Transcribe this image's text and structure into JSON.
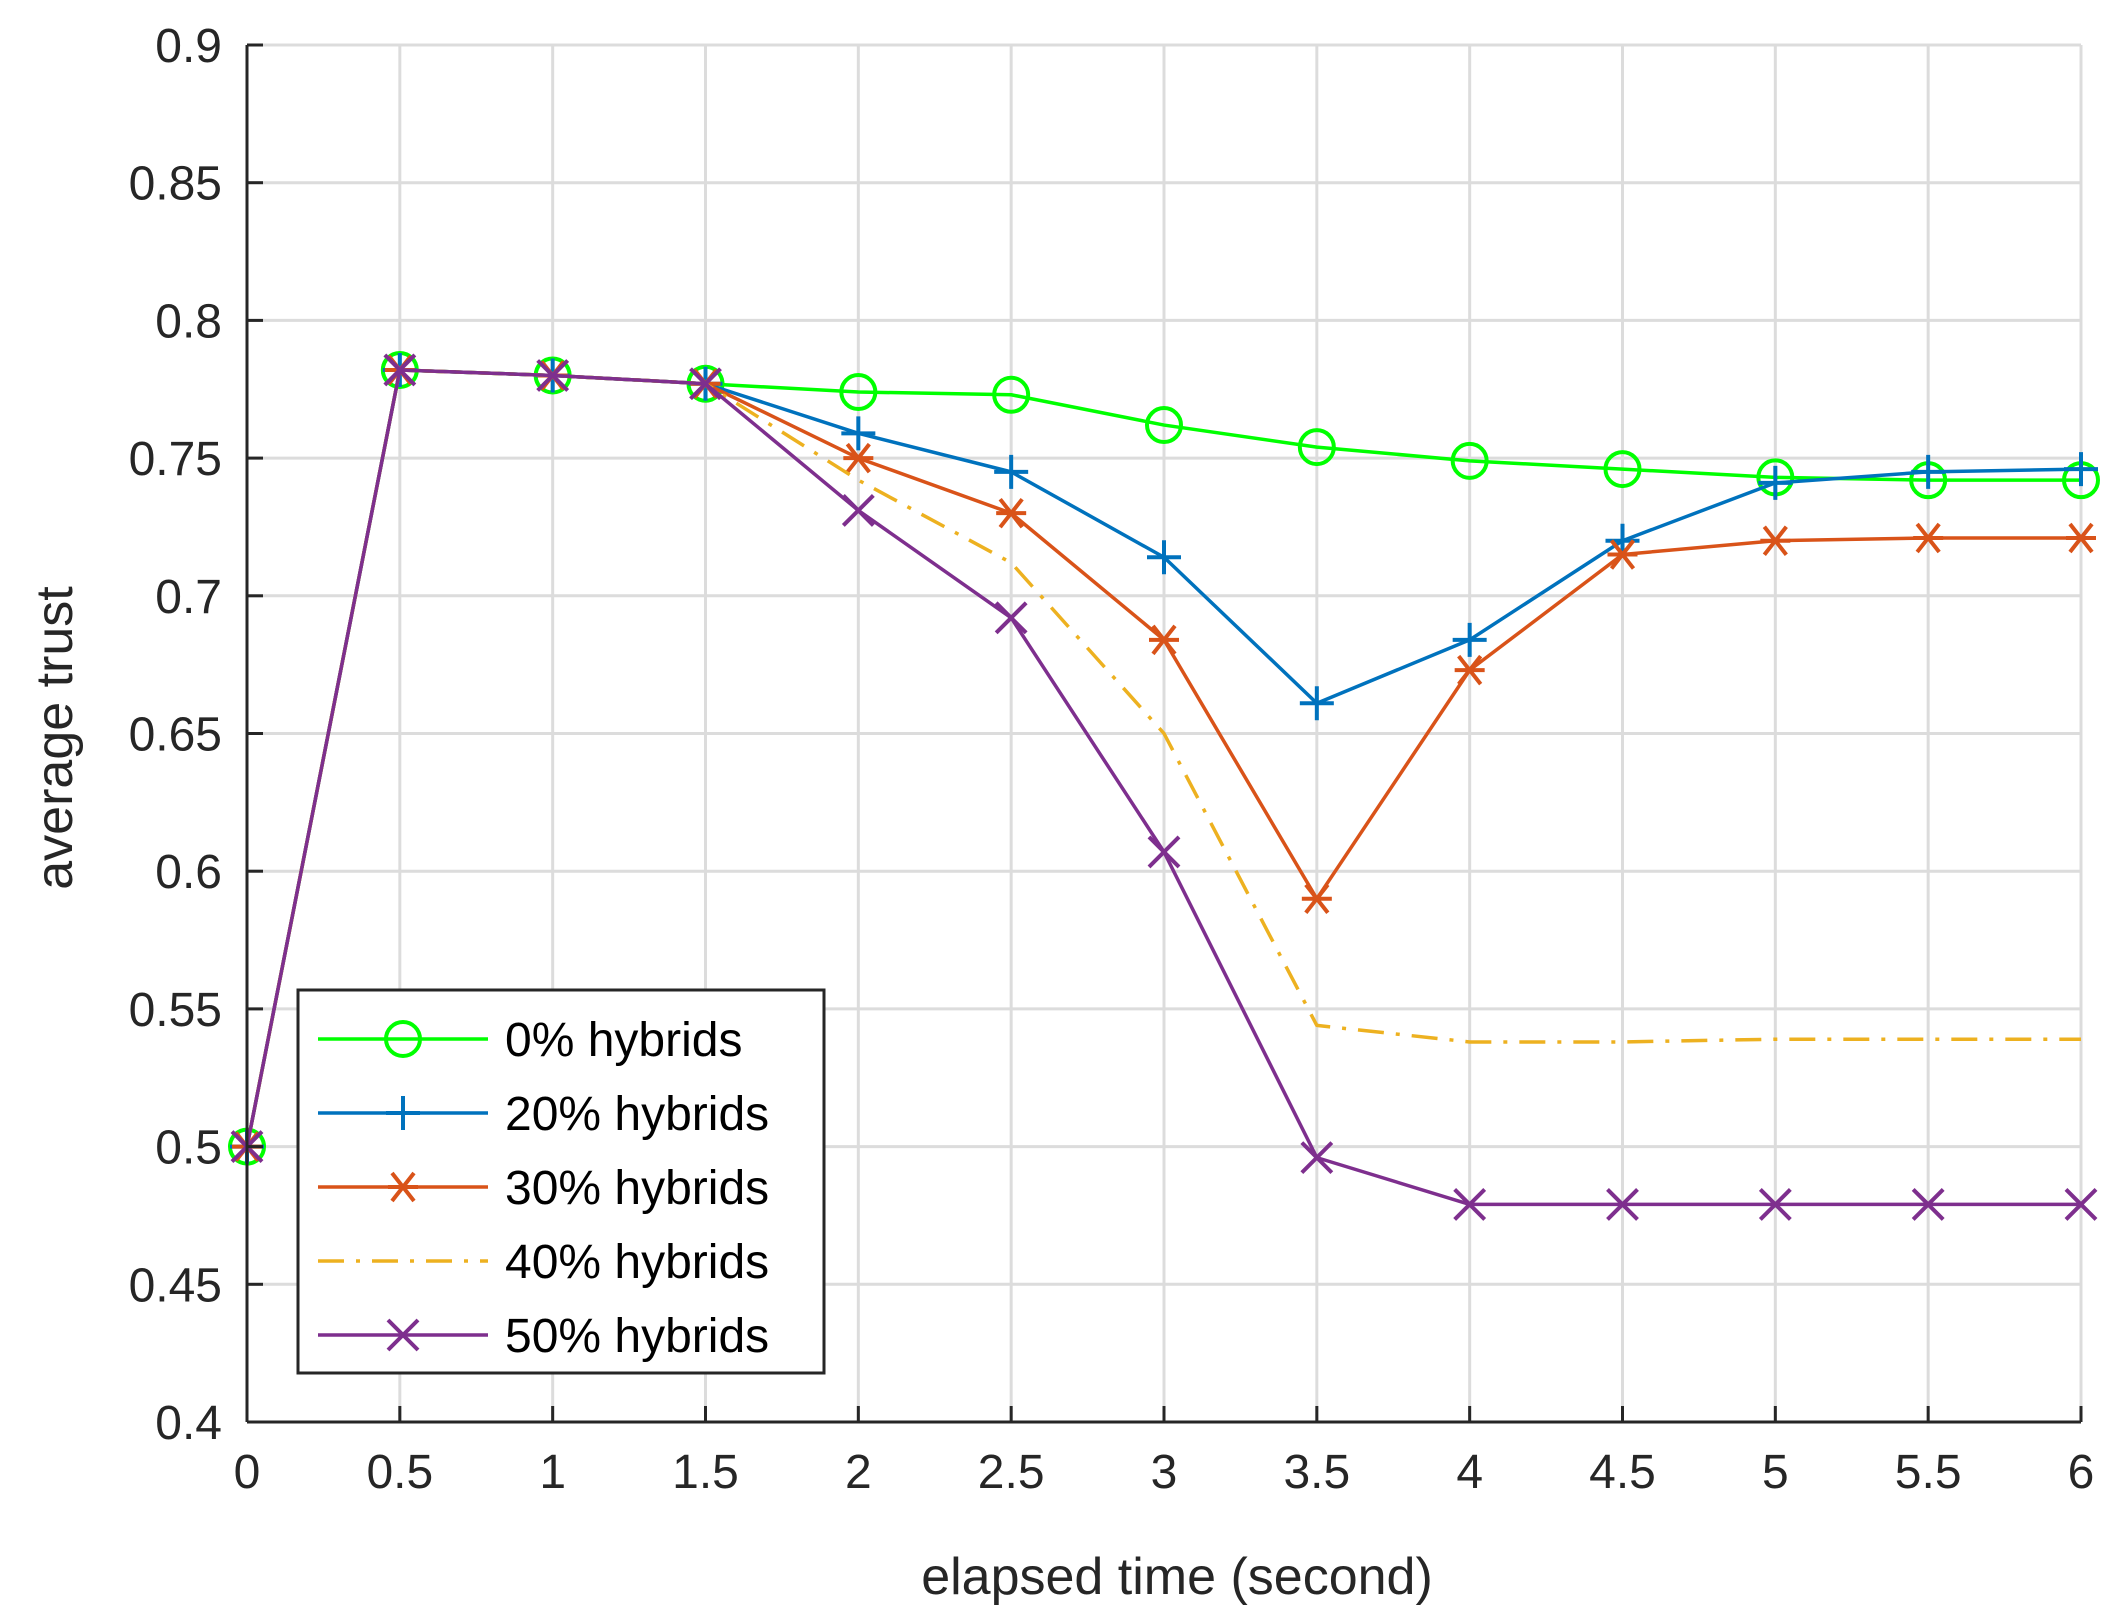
{
  "chart_data": {
    "type": "line",
    "title": "",
    "xlabel": "elapsed time (second)",
    "ylabel": "average trust",
    "xlim": [
      0,
      6
    ],
    "ylim": [
      0.4,
      0.9
    ],
    "grid": true,
    "legend_position": "bottom-left",
    "x": [
      0,
      0.5,
      1,
      1.5,
      2,
      2.5,
      3,
      3.5,
      4,
      4.5,
      5,
      5.5,
      6
    ],
    "x_ticks": [
      "0",
      "0.5",
      "1",
      "1.5",
      "2",
      "2.5",
      "3",
      "3.5",
      "4",
      "4.5",
      "5",
      "5.5",
      "6"
    ],
    "y_ticks": [
      "0.4",
      "0.45",
      "0.5",
      "0.55",
      "0.6",
      "0.65",
      "0.7",
      "0.75",
      "0.8",
      "0.85",
      "0.9"
    ],
    "series": [
      {
        "name": "0% hybrids",
        "color": "#00ff00",
        "marker": "circle",
        "line_style": "solid",
        "values": [
          0.5,
          0.782,
          0.78,
          0.777,
          0.774,
          0.773,
          0.762,
          0.754,
          0.749,
          0.746,
          0.743,
          0.742,
          0.742
        ]
      },
      {
        "name": "20% hybrids",
        "color": "#0072bd",
        "marker": "plus",
        "line_style": "solid",
        "values": [
          0.5,
          0.782,
          0.78,
          0.777,
          0.759,
          0.745,
          0.714,
          0.661,
          0.684,
          0.72,
          0.741,
          0.745,
          0.746
        ]
      },
      {
        "name": "30% hybrids",
        "color": "#d95319",
        "marker": "asterisk",
        "line_style": "solid",
        "values": [
          0.5,
          0.782,
          0.78,
          0.777,
          0.75,
          0.73,
          0.684,
          0.59,
          0.673,
          0.715,
          0.72,
          0.721,
          0.721
        ]
      },
      {
        "name": "40% hybrids",
        "color": "#edb120",
        "marker": "none",
        "line_style": "dashdot",
        "values": [
          0.5,
          0.782,
          0.78,
          0.777,
          0.742,
          0.712,
          0.65,
          0.544,
          0.538,
          0.538,
          0.539,
          0.539,
          0.539
        ]
      },
      {
        "name": "50% hybrids",
        "color": "#7e2f8e",
        "marker": "x",
        "line_style": "solid",
        "values": [
          0.5,
          0.782,
          0.78,
          0.777,
          0.731,
          0.692,
          0.607,
          0.496,
          0.479,
          0.479,
          0.479,
          0.479,
          0.479
        ]
      }
    ]
  }
}
